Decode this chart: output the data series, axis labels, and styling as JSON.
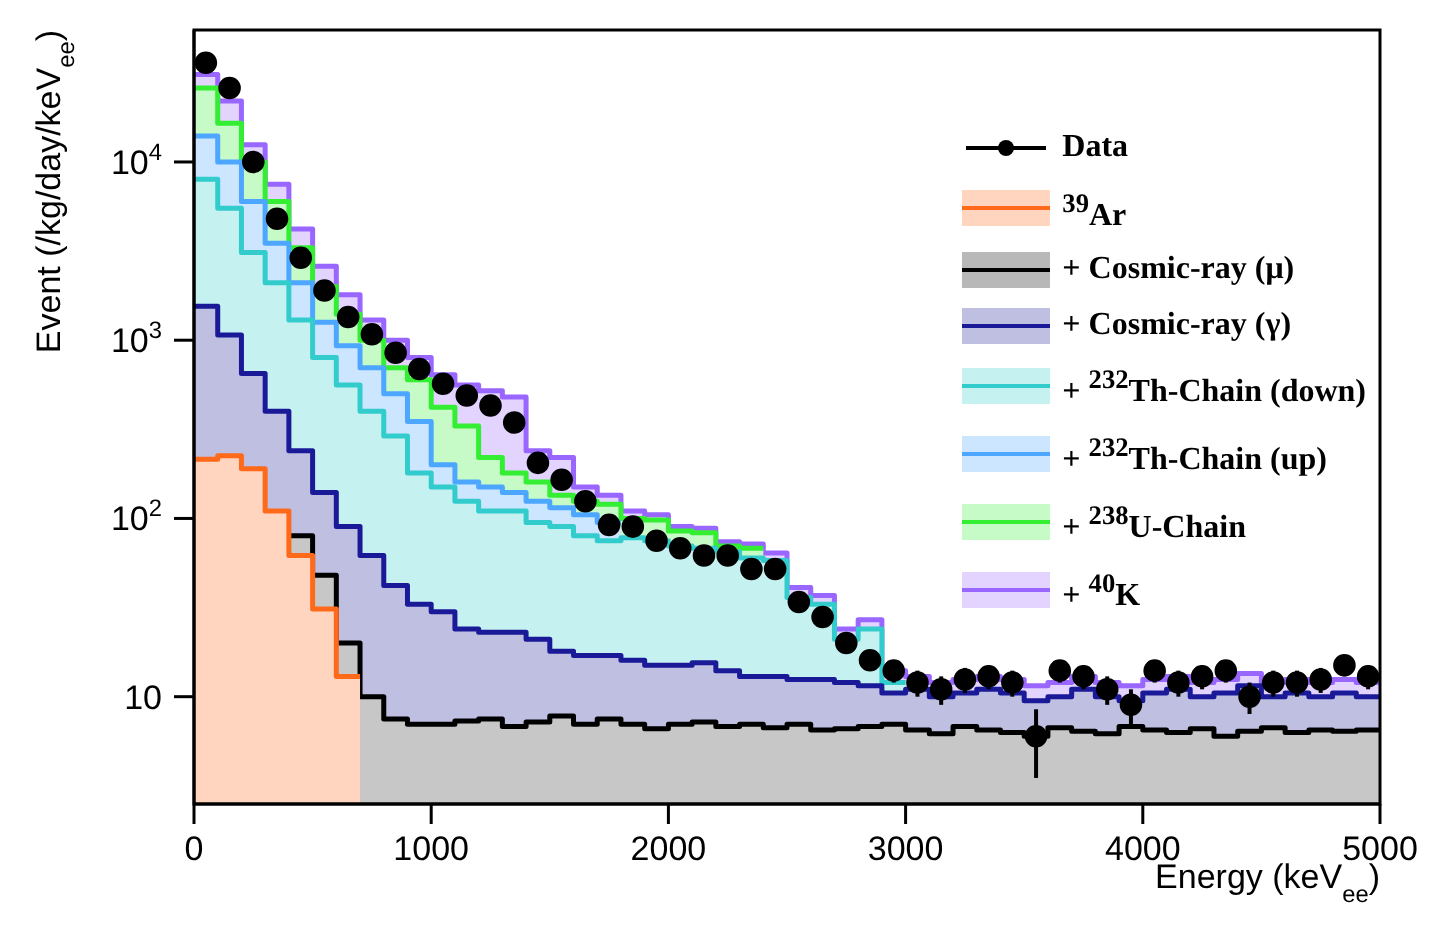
{
  "chart_data": {
    "type": "area",
    "xlabel": "Energy (keV$_{ee}$)",
    "ylabel": "Event (/kg/day/keV$_{ee}$)",
    "log": "y",
    "xlim": [
      0,
      5000
    ],
    "xticks": [
      0,
      1000,
      2000,
      3000,
      4000,
      5000
    ],
    "ylim": [
      2.5,
      55000
    ],
    "yticks": [
      {
        "value": 10,
        "label": "10"
      },
      {
        "value": 100,
        "label": "10$^{2}$"
      },
      {
        "value": 1000,
        "label": "10$^{3}$"
      },
      {
        "value": 10000,
        "label": "10$^{4}$"
      }
    ],
    "legend": "top right",
    "series": [
      {
        "name": "Data",
        "type": "scatter",
        "marker": "circle",
        "color": "#000000",
        "x": [
          50,
          150,
          250,
          350,
          450,
          550,
          650,
          750,
          850,
          950,
          1050,
          1150,
          1250,
          1350,
          1450,
          1550,
          1650,
          1750,
          1850,
          1950,
          2050,
          2150,
          2250,
          2350,
          2450,
          2550,
          2650,
          2750,
          2850,
          2950,
          3050,
          3150,
          3250,
          3350,
          3450,
          3550,
          3650,
          3750,
          3850,
          3950,
          4050,
          4150,
          4250,
          4350,
          4450,
          4550,
          4650,
          4750,
          4850,
          4950
        ],
        "values": [
          36000,
          26000,
          10000,
          4800,
          2900,
          1900,
          1350,
          1080,
          850,
          690,
          570,
          490,
          430,
          345,
          205,
          165,
          125,
          92,
          90,
          75,
          68,
          62,
          62,
          52,
          52,
          34,
          28,
          20,
          16,
          14,
          12,
          11,
          12.5,
          13,
          12,
          6,
          14,
          13,
          11,
          9,
          14,
          12,
          13,
          14,
          10,
          12,
          12,
          12.5,
          15,
          13
        ],
        "errors": [
          null,
          null,
          null,
          null,
          null,
          null,
          null,
          null,
          null,
          null,
          null,
          null,
          null,
          null,
          null,
          null,
          null,
          null,
          null,
          null,
          null,
          null,
          null,
          null,
          null,
          null,
          null,
          null,
          null,
          2,
          2,
          2,
          2,
          2,
          2,
          2.5,
          2,
          2,
          2,
          2,
          2,
          2,
          2,
          2,
          2,
          2,
          2,
          2,
          2,
          2
        ]
      },
      {
        "name": "$^{39}$Ar",
        "color": "#ff6a1a",
        "x": [
          0,
          100,
          100,
          200,
          200,
          300,
          300,
          400,
          400,
          500,
          500,
          600,
          600,
          700
        ],
        "values": [
          215,
          215,
          225,
          225,
          190,
          190,
          110,
          110,
          62,
          62,
          31,
          31,
          13,
          13
        ]
      },
      {
        "name": "+ Cosmic-ray (μ)",
        "color": "#000000",
        "x": [
          400,
          500,
          500,
          600,
          600,
          700,
          700,
          800,
          800,
          900,
          900,
          1000,
          1000,
          1100,
          1100,
          1200,
          1200,
          1300,
          1300,
          1400,
          1400,
          1500,
          1500,
          1600,
          1600,
          1700,
          1700,
          1800,
          1800,
          1900,
          1900,
          2000,
          2000,
          2100,
          2100,
          2200,
          2200,
          2300,
          2300,
          2400,
          2400,
          2500,
          2500,
          2600,
          2600,
          2700,
          2700,
          2800,
          2800,
          2900,
          2900,
          3000,
          3000,
          3100,
          3100,
          3200,
          3200,
          3300,
          3300,
          3400,
          3400,
          3500,
          3500,
          3600,
          3600,
          3700,
          3700,
          3800,
          3800,
          3900,
          3900,
          4000,
          4000,
          4100,
          4100,
          4200,
          4200,
          4300,
          4300,
          4400,
          4400,
          4500,
          4500,
          4600,
          4600,
          4700,
          4700,
          4800,
          4800,
          4900,
          4900,
          5000
        ],
        "values": [
          80,
          80,
          48,
          48,
          20,
          20,
          10,
          10,
          7.5,
          7.5,
          7,
          7,
          7,
          7,
          7.3,
          7.3,
          7.5,
          7.5,
          6.8,
          6.8,
          7.2,
          7.2,
          7.8,
          7.8,
          7,
          7,
          7.5,
          7.5,
          7,
          7,
          6.6,
          6.6,
          7,
          7,
          7.2,
          7.2,
          6.8,
          6.8,
          7,
          7,
          6.7,
          6.7,
          7,
          7,
          6.5,
          6.5,
          6.6,
          6.6,
          6.8,
          6.8,
          7,
          7,
          6.5,
          6.5,
          6.2,
          6.2,
          6.8,
          6.8,
          6.5,
          6.5,
          6.3,
          6.3,
          6,
          6,
          6.7,
          6.7,
          6.4,
          6.4,
          6.2,
          6.2,
          6.8,
          6.8,
          6.5,
          6.5,
          6.3,
          6.3,
          6.6,
          6.6,
          6,
          6,
          6.4,
          6.4,
          6.7,
          6.7,
          6.3,
          6.3,
          6.5,
          6.5,
          6.4,
          6.4,
          6.5,
          6.5
        ]
      },
      {
        "name": "+ Cosmic-ray (γ)",
        "color": "#1a1a99",
        "x": [
          0,
          100,
          100,
          200,
          200,
          300,
          300,
          400,
          400,
          500,
          500,
          600,
          600,
          700,
          700,
          800,
          800,
          900,
          900,
          1000,
          1000,
          1100,
          1100,
          1200,
          1200,
          1300,
          1300,
          1400,
          1400,
          1500,
          1500,
          1600,
          1600,
          1700,
          1700,
          1800,
          1800,
          1900,
          1900,
          2000,
          2000,
          2100,
          2100,
          2200,
          2200,
          2300,
          2300,
          2400,
          2400,
          2500,
          2500,
          2600,
          2600,
          2700,
          2700,
          2800,
          2800,
          2900,
          2900,
          3000,
          3000,
          3100,
          3100,
          3200,
          3200,
          3300,
          3300,
          3400,
          3400,
          3500,
          3500,
          3600,
          3600,
          3700,
          3700,
          3800,
          3800,
          3900,
          3900,
          4000,
          4000,
          4100,
          4100,
          4200,
          4200,
          4300,
          4300,
          4400,
          4400,
          4500,
          4500,
          4600,
          4600,
          4700,
          4700,
          4800,
          4800,
          4900,
          4900,
          5000
        ],
        "values": [
          1550,
          1550,
          1070,
          1070,
          650,
          650,
          400,
          400,
          240,
          240,
          140,
          140,
          90,
          90,
          62,
          62,
          42,
          42,
          33,
          33,
          30,
          30,
          24,
          24,
          23,
          23,
          23,
          23,
          21,
          21,
          18,
          18,
          17,
          17,
          17,
          17,
          16,
          16,
          15,
          15,
          15,
          15,
          15.5,
          15.5,
          14,
          14,
          13,
          13,
          13,
          13,
          12.5,
          12.5,
          12.5,
          12.5,
          12,
          12,
          11.5,
          11.5,
          10.5,
          10.5,
          11,
          11,
          10,
          10,
          10.5,
          10.5,
          11,
          11,
          10.5,
          10.5,
          9.5,
          9.5,
          10,
          10,
          11,
          11,
          10,
          10,
          9.5,
          9.5,
          10.5,
          10.5,
          11,
          11,
          10,
          10,
          10.5,
          10.5,
          11.5,
          11.5,
          10,
          10,
          10.5,
          10.5,
          10,
          10,
          10.5,
          10.5,
          10,
          10
        ]
      },
      {
        "name": "+ $^{232}$Th-Chain (down)",
        "color": "#33cccc",
        "x": [
          0,
          100,
          100,
          200,
          200,
          300,
          300,
          400,
          400,
          500,
          500,
          600,
          600,
          700,
          700,
          800,
          800,
          900,
          900,
          1000,
          1000,
          1100,
          1100,
          1200,
          1200,
          1300,
          1300,
          1400,
          1400,
          1500,
          1500,
          1600,
          1600,
          1700,
          1700,
          1800,
          1800,
          1900,
          1900,
          2000,
          2000,
          2100,
          2100,
          2200,
          2200,
          2300,
          2300,
          2400,
          2400,
          2500,
          2500,
          2600,
          2600,
          2700,
          2700,
          2800,
          2800,
          2900,
          2900,
          3000
        ],
        "values": [
          8000,
          8000,
          5500,
          5500,
          3100,
          3100,
          2100,
          2100,
          1300,
          1300,
          800,
          800,
          560,
          560,
          400,
          400,
          290,
          290,
          180,
          180,
          150,
          150,
          125,
          125,
          110,
          110,
          110,
          110,
          95,
          95,
          90,
          90,
          80,
          80,
          75,
          75,
          78,
          78,
          75,
          75,
          70,
          70,
          68,
          68,
          65,
          65,
          60,
          60,
          58,
          58,
          36,
          36,
          33,
          33,
          21,
          21,
          24,
          24,
          12,
          12
        ]
      },
      {
        "name": "+ $^{232}$Th-Chain (up)",
        "color": "#4da6ff",
        "x": [
          0,
          100,
          100,
          200,
          200,
          300,
          300,
          400,
          400,
          500,
          500,
          600,
          600,
          700,
          700,
          800,
          800,
          900,
          900,
          1000,
          1000,
          1100,
          1100,
          1200,
          1200,
          1300,
          1300,
          1400,
          1400,
          1500,
          1500,
          1600,
          1600,
          1700,
          1700,
          1800
        ],
        "values": [
          14000,
          14000,
          10000,
          10000,
          6000,
          6000,
          3500,
          3500,
          2100,
          2100,
          1260,
          1260,
          930,
          930,
          700,
          700,
          500,
          500,
          350,
          350,
          200,
          200,
          160,
          160,
          150,
          150,
          140,
          140,
          125,
          125,
          115,
          115,
          105,
          105,
          95,
          95
        ]
      },
      {
        "name": "+ $^{238}$U-Chain",
        "color": "#33ee33",
        "x": [
          0,
          100,
          100,
          200,
          200,
          300,
          300,
          400,
          400,
          500,
          500,
          600,
          600,
          700,
          700,
          800,
          800,
          900,
          900,
          1000,
          1000,
          1100,
          1100,
          1200,
          1200,
          1300,
          1300,
          1400,
          1400,
          1500,
          1500,
          1600,
          1600,
          1700,
          1700,
          1800,
          1800,
          1900,
          1900,
          2000,
          2000,
          2100,
          2100,
          2200,
          2200,
          2300,
          2300,
          2400
        ],
        "values": [
          26000,
          26000,
          16500,
          16500,
          10000,
          10000,
          6000,
          6000,
          3300,
          3300,
          2000,
          2000,
          1400,
          1400,
          1000,
          1000,
          700,
          700,
          600,
          600,
          420,
          420,
          330,
          330,
          220,
          220,
          180,
          180,
          160,
          160,
          135,
          135,
          125,
          125,
          120,
          120,
          100,
          100,
          98,
          98,
          85,
          85,
          83,
          83,
          70,
          70,
          68,
          68
        ]
      },
      {
        "name": "+ $^{40}$K",
        "color": "#9966ff",
        "x": [
          0,
          100,
          100,
          200,
          200,
          300,
          300,
          400,
          400,
          500,
          500,
          600,
          600,
          700,
          700,
          800,
          800,
          900,
          900,
          1000,
          1000,
          1100,
          1100,
          1200,
          1200,
          1300,
          1300,
          1400,
          1400,
          1500,
          1500,
          1600,
          1600,
          1700,
          1700,
          1800,
          1800,
          1900,
          1900,
          2000,
          2000,
          2100,
          2100,
          2200,
          2200,
          2300,
          2300,
          2400,
          2400,
          2500,
          2500,
          2600,
          2600,
          2700,
          2700,
          2800,
          2800,
          2900,
          2900,
          3000,
          3000,
          3100,
          3100,
          3200,
          3200,
          3300,
          3300,
          3400,
          3400,
          3500,
          3500,
          3600,
          3600,
          3700,
          3700,
          3800,
          3800,
          3900,
          3900,
          4000,
          4000,
          4100,
          4100,
          4200,
          4200,
          4300,
          4300,
          4400,
          4400,
          4500,
          4500,
          4600,
          4600,
          4700,
          4700,
          4800,
          4800,
          4900,
          4900,
          5000
        ],
        "values": [
          31000,
          31000,
          22000,
          22000,
          12500,
          12500,
          7500,
          7500,
          4200,
          4200,
          2600,
          2600,
          1800,
          1800,
          1300,
          1300,
          1000,
          1000,
          800,
          800,
          640,
          640,
          560,
          560,
          520,
          520,
          480,
          480,
          240,
          240,
          220,
          220,
          150,
          150,
          135,
          135,
          110,
          110,
          105,
          105,
          90,
          90,
          88,
          88,
          74,
          74,
          72,
          72,
          64,
          64,
          41,
          41,
          37,
          37,
          24,
          24,
          27,
          27,
          14,
          14,
          13,
          13,
          12,
          12,
          12.5,
          12.5,
          13,
          13,
          12.5,
          12.5,
          11.5,
          11.5,
          12,
          12,
          13,
          13,
          12,
          12,
          11.5,
          11.5,
          12.5,
          12.5,
          13,
          13,
          12,
          12,
          12.5,
          12.5,
          13.5,
          13.5,
          12,
          12,
          12.5,
          12.5,
          12,
          12,
          12.5,
          12.5,
          12,
          12
        ]
      }
    ]
  }
}
